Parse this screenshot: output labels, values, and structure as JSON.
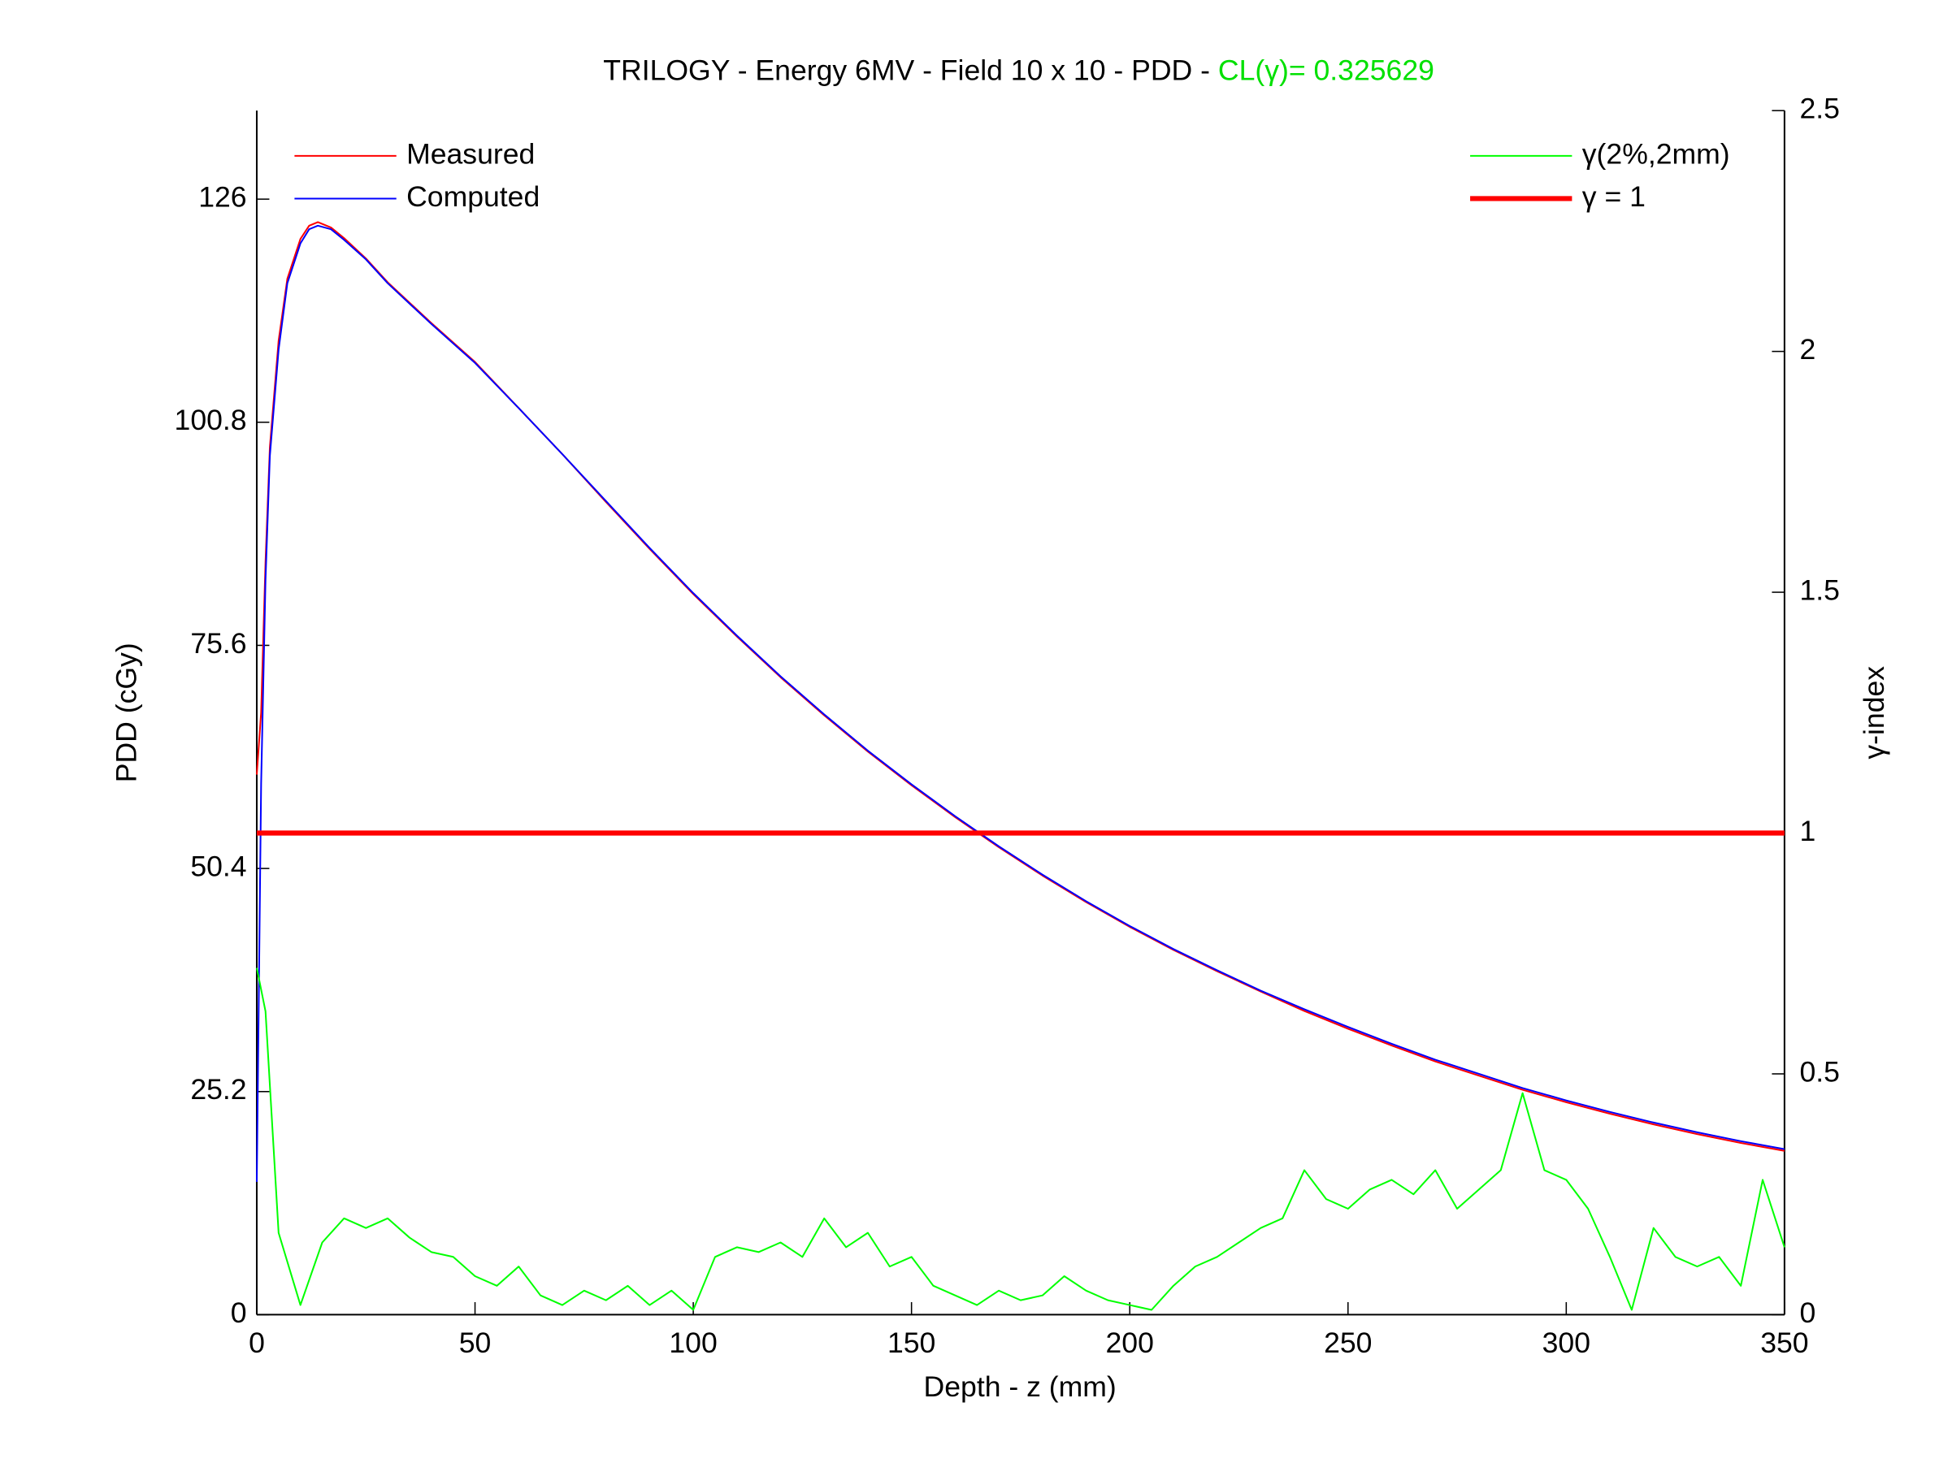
{
  "chart_data": {
    "type": "line",
    "title": "TRILOGY - Energy 6MV - Field 10 x 10 - PDD -",
    "title_suffix": "CL(γ)= 0.325629",
    "title_suffix_color": "#00e000",
    "xlabel": "Depth - z (mm)",
    "ylabel": "PDD (cGy)",
    "y2label": "γ-index",
    "xlim": [
      0,
      350
    ],
    "xticks": [
      0,
      50,
      100,
      150,
      200,
      250,
      300,
      350
    ],
    "ylim": [
      0,
      136
    ],
    "yticks": [
      0,
      25.2,
      50.4,
      75.6,
      100.8,
      126
    ],
    "y2lim": [
      0,
      2.5
    ],
    "y2ticks": [
      0,
      0.5,
      1,
      1.5,
      2,
      2.5
    ],
    "series": [
      {
        "name": "Measured",
        "color": "#ff0000",
        "linewidth": 1.3,
        "legend": "upper left",
        "x": [
          0,
          1,
          2,
          3,
          5,
          7,
          10,
          12,
          14,
          17,
          20,
          25,
          30,
          40,
          50,
          60,
          70,
          80,
          90,
          100,
          110,
          120,
          130,
          140,
          150,
          160,
          170,
          180,
          190,
          200,
          210,
          220,
          230,
          240,
          250,
          260,
          270,
          280,
          290,
          300,
          310,
          320,
          330,
          340,
          350
        ],
        "values": [
          61,
          68,
          85,
          98,
          110,
          117,
          121.5,
          123,
          123.4,
          122.8,
          121.6,
          119.3,
          116.6,
          112.0,
          107.6,
          102.4,
          97.2,
          91.8,
          86.5,
          81.4,
          76.6,
          72.0,
          67.7,
          63.6,
          59.8,
          56.2,
          52.8,
          49.6,
          46.6,
          43.8,
          41.2,
          38.8,
          36.5,
          34.3,
          32.3,
          30.4,
          28.6,
          27.0,
          25.4,
          24.0,
          22.7,
          21.5,
          20.4,
          19.4,
          18.5
        ]
      },
      {
        "name": "Computed",
        "color": "#0000ff",
        "linewidth": 1.3,
        "legend": "upper left",
        "x": [
          0,
          1,
          2,
          3,
          5,
          7,
          10,
          12,
          14,
          17,
          20,
          25,
          30,
          40,
          50,
          60,
          70,
          80,
          90,
          100,
          110,
          120,
          130,
          140,
          150,
          160,
          170,
          180,
          190,
          200,
          210,
          220,
          230,
          240,
          250,
          260,
          270,
          280,
          290,
          300,
          310,
          320,
          330,
          340,
          350
        ],
        "values": [
          15,
          60,
          83,
          97,
          109,
          116.5,
          121,
          122.6,
          123.0,
          122.6,
          121.4,
          119.2,
          116.5,
          111.9,
          107.5,
          102.4,
          97.2,
          91.9,
          86.6,
          81.5,
          76.7,
          72.1,
          67.8,
          63.7,
          59.9,
          56.3,
          52.9,
          49.7,
          46.7,
          43.9,
          41.3,
          38.9,
          36.6,
          34.5,
          32.5,
          30.6,
          28.8,
          27.2,
          25.6,
          24.2,
          22.9,
          21.7,
          20.6,
          19.6,
          18.7
        ]
      },
      {
        "name": "γ(2%,2mm)",
        "color": "#00ff00",
        "linewidth": 1.3,
        "axis": "y2",
        "legend": "upper right",
        "x": [
          0,
          2,
          5,
          10,
          15,
          20,
          25,
          30,
          35,
          40,
          45,
          50,
          55,
          60,
          65,
          70,
          75,
          80,
          85,
          90,
          95,
          100,
          105,
          110,
          115,
          120,
          125,
          130,
          135,
          140,
          145,
          150,
          155,
          160,
          165,
          170,
          175,
          180,
          185,
          190,
          195,
          200,
          205,
          210,
          215,
          220,
          225,
          230,
          235,
          240,
          245,
          250,
          255,
          260,
          265,
          270,
          275,
          280,
          285,
          290,
          295,
          300,
          305,
          310,
          315,
          320,
          325,
          330,
          335,
          340,
          345,
          350
        ],
        "values": [
          0.72,
          0.63,
          0.17,
          0.02,
          0.15,
          0.2,
          0.18,
          0.2,
          0.16,
          0.13,
          0.12,
          0.08,
          0.06,
          0.1,
          0.04,
          0.02,
          0.05,
          0.03,
          0.06,
          0.02,
          0.05,
          0.01,
          0.12,
          0.14,
          0.13,
          0.15,
          0.12,
          0.2,
          0.14,
          0.17,
          0.1,
          0.12,
          0.06,
          0.04,
          0.02,
          0.05,
          0.03,
          0.04,
          0.08,
          0.05,
          0.03,
          0.02,
          0.01,
          0.06,
          0.1,
          0.12,
          0.15,
          0.18,
          0.2,
          0.3,
          0.24,
          0.22,
          0.26,
          0.28,
          0.25,
          0.3,
          0.22,
          0.26,
          0.3,
          0.46,
          0.3,
          0.28,
          0.22,
          0.12,
          0.01,
          0.18,
          0.12,
          0.1,
          0.12,
          0.06,
          0.28,
          0.14
        ]
      },
      {
        "name": "γ = 1",
        "color": "#ff0000",
        "linewidth": 4,
        "axis": "y2",
        "legend": "upper right",
        "x": [
          0,
          350
        ],
        "values": [
          1,
          1
        ]
      }
    ]
  }
}
